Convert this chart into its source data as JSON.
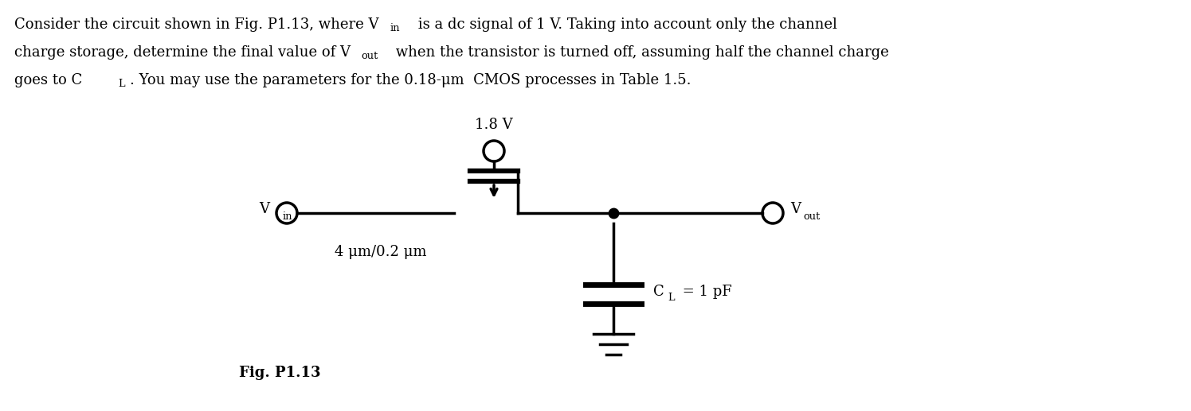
{
  "background_color": "#ffffff",
  "text_color": "#000000",
  "fig_width": 14.95,
  "fig_height": 5.17,
  "paragraph_fontsize": 13.0,
  "vdd_label": "1.8 V",
  "vin_label": "V",
  "vin_sub": "in",
  "vout_label": "V",
  "vout_sub": "out",
  "size_label": "4 μm/0.2 μm",
  "cl_label": "C",
  "cl_sub": "L",
  "cl_val": " = 1 pF",
  "fig_label": "Fig. P1.13",
  "line_color": "#000000",
  "line_width": 2.5,
  "dot_size": 9
}
